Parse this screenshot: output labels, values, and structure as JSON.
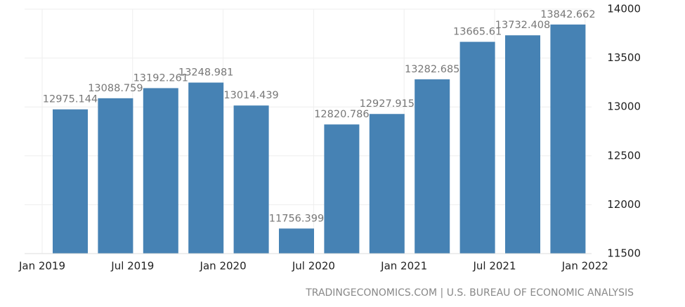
{
  "chart_data": {
    "type": "bar",
    "categories": [
      null,
      null,
      null,
      null,
      null,
      null,
      null,
      null,
      null,
      null,
      null,
      null
    ],
    "values": [
      12975.144,
      13088.759,
      13192.261,
      13248.981,
      13014.439,
      11756.399,
      12820.786,
      12927.915,
      13282.685,
      13665.61,
      13732.408,
      13842.662
    ],
    "color": "#4682b4",
    "xticks": [
      "Jan 2019",
      "Jul 2019",
      "Jan 2020",
      "Jul 2020",
      "Jan 2021",
      "Jul 2021",
      "Jan 2022"
    ],
    "ylim": [
      11500,
      14000
    ],
    "yticks": [
      11500,
      12000,
      12500,
      13000,
      13500,
      14000
    ],
    "grid": true,
    "source": "TRADINGECONOMICS.COM | U.S. BUREAU OF ECONOMIC ANALYSIS"
  }
}
